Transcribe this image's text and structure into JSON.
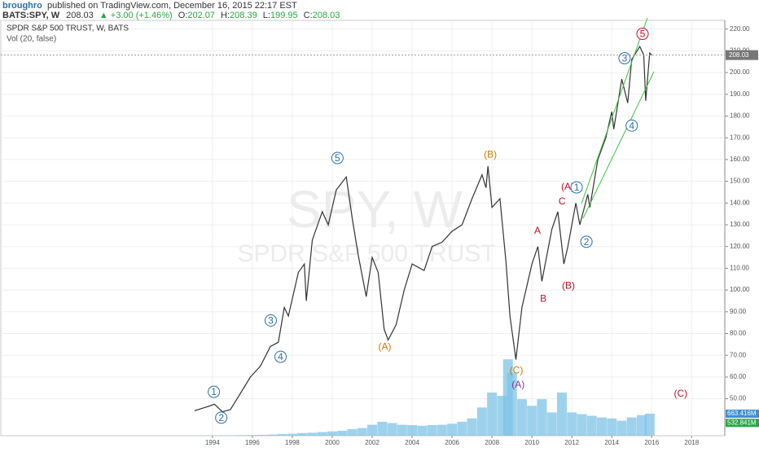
{
  "header": {
    "publisher": "broughro",
    "published": "published on TradingView.com, December 16, 2015 22:17 EST",
    "symbol": "BATS:SPY, W",
    "price": "208.03",
    "change": "▲ +3.00 (+1.46%)",
    "ohlc": [
      [
        "O:",
        "202.07"
      ],
      [
        "H:",
        "208.39"
      ],
      [
        "L:",
        "199.95"
      ],
      [
        "C:",
        "208.03"
      ]
    ]
  },
  "chart_data": {
    "type": "line",
    "legend_title": "SPDR S&P 500 TRUST, W, BATS",
    "legend_volume": "Vol (20, false)",
    "watermark": "SPY, W",
    "watermark_sub": "SPDR S&P 500 TRUST",
    "xlim": [
      1983.4,
      2019.66
    ],
    "ylim": [
      33,
      224
    ],
    "y2lim": [
      0,
      12500
    ],
    "grid": true,
    "xticks": [
      1994,
      1996,
      1998,
      2000,
      2002,
      2004,
      2006,
      2008,
      2010,
      2012,
      2014,
      2016,
      2018
    ],
    "yticks": [
      {
        "value": 50,
        "label": "50.00"
      },
      {
        "value": 60,
        "label": "60.00"
      },
      {
        "value": 70,
        "label": "70.00"
      },
      {
        "value": 80,
        "label": "80.00"
      },
      {
        "value": 90,
        "label": "90.00"
      },
      {
        "value": 100,
        "label": "100.00"
      },
      {
        "value": 110,
        "label": "110.00"
      },
      {
        "value": 120,
        "label": "120.00"
      },
      {
        "value": 130,
        "label": "130.00"
      },
      {
        "value": 140,
        "label": "140.00"
      },
      {
        "value": 150,
        "label": "150.00"
      },
      {
        "value": 160,
        "label": "160.00"
      },
      {
        "value": 170,
        "label": "170.00"
      },
      {
        "value": 180,
        "label": "180.00"
      },
      {
        "value": 190,
        "label": "190.00"
      },
      {
        "value": 200,
        "label": "200.00"
      },
      {
        "value": 210,
        "label": "210.00"
      },
      {
        "value": 220,
        "label": "220.00"
      }
    ],
    "price_tag": 208.03,
    "volume_tags": [
      {
        "value": 663.416,
        "label": "663.416M",
        "color": "#3d8fd1"
      },
      {
        "value": 532.841,
        "label": "532.841M",
        "color": "#27a844"
      }
    ],
    "price": {
      "name": "SPY",
      "color": "#333333",
      "x": [
        1993.1,
        1993.8,
        1994.1,
        1994.5,
        1994.9,
        1995.3,
        1995.9,
        1996.4,
        1996.9,
        1997.3,
        1997.6,
        1997.8,
        1998.3,
        1998.6,
        1998.7,
        1999.0,
        1999.5,
        1999.8,
        2000.2,
        2000.7,
        2001.0,
        2001.3,
        2001.7,
        2002.0,
        2002.3,
        2002.6,
        2002.8,
        2003.2,
        2003.6,
        2004.0,
        2004.6,
        2005.0,
        2005.5,
        2006.0,
        2006.5,
        2007.0,
        2007.5,
        2007.7,
        2007.8,
        2008.0,
        2008.4,
        2008.7,
        2008.9,
        2009.2,
        2009.5,
        2010.0,
        2010.3,
        2010.5,
        2011.0,
        2011.3,
        2011.6,
        2011.8,
        2012.2,
        2012.4,
        2012.8,
        2012.9,
        2013.3,
        2013.7,
        2014.0,
        2014.1,
        2014.5,
        2014.8,
        2015.0,
        2015.4,
        2015.6,
        2015.7,
        2015.9,
        2016.0
      ],
      "values": [
        44.5,
        46.5,
        47.5,
        44,
        45,
        51,
        60,
        65,
        74,
        76,
        92,
        88,
        108,
        112,
        95,
        123,
        136,
        130,
        146,
        152,
        133,
        116,
        97,
        115,
        108,
        82,
        77,
        84,
        100,
        112,
        109,
        120,
        122,
        127,
        130,
        142,
        153,
        147,
        157,
        138,
        142,
        113,
        88,
        68,
        92,
        112,
        120,
        104,
        128,
        136,
        112,
        120,
        140,
        130,
        144,
        138,
        160,
        170,
        182,
        174,
        197,
        186,
        206,
        212,
        208,
        187,
        209,
        208
      ]
    },
    "volume": {
      "name": "Vol",
      "color": "#7ec3e6",
      "axis": "y2",
      "x": [
        1993.0,
        1993.5,
        1994.0,
        1994.5,
        1995.0,
        1995.5,
        1996.0,
        1996.5,
        1997.0,
        1997.5,
        1998.0,
        1998.5,
        1999.0,
        1999.5,
        2000.0,
        2000.5,
        2001.0,
        2001.5,
        2002.0,
        2002.5,
        2003.0,
        2003.5,
        2004.0,
        2004.5,
        2005.0,
        2005.5,
        2006.0,
        2006.5,
        2007.0,
        2007.5,
        2008.0,
        2008.5,
        2008.8,
        2009.0,
        2009.5,
        2010.0,
        2010.5,
        2011.0,
        2011.5,
        2012.0,
        2012.5,
        2013.0,
        2013.5,
        2014.0,
        2014.5,
        2015.0,
        2015.5,
        2015.9
      ],
      "values": [
        5,
        5,
        8,
        10,
        10,
        15,
        20,
        25,
        35,
        50,
        60,
        80,
        90,
        110,
        130,
        150,
        200,
        230,
        330,
        420,
        380,
        330,
        320,
        300,
        320,
        330,
        360,
        420,
        520,
        850,
        1300,
        1200,
        2300,
        1900,
        1100,
        900,
        1100,
        700,
        1300,
        700,
        650,
        600,
        550,
        520,
        450,
        550,
        620,
        663.416
      ]
    },
    "annotations": [
      {
        "text": "1",
        "x": 1994.07,
        "y": 53.2,
        "color": "#2a6fa8",
        "circled": true
      },
      {
        "text": "2",
        "x": 1994.44,
        "y": 41.3,
        "color": "#2a6fa8",
        "circled": true
      },
      {
        "text": "3",
        "x": 1996.92,
        "y": 86.0,
        "color": "#2a6fa8",
        "circled": true
      },
      {
        "text": "4",
        "x": 1997.41,
        "y": 69.3,
        "color": "#2a6fa8",
        "circled": true
      },
      {
        "text": "5",
        "x": 2000.26,
        "y": 160.7,
        "color": "#2a6fa8",
        "circled": true
      },
      {
        "text": "(A)",
        "x": 2002.63,
        "y": 74.1,
        "color": "#c87a00",
        "circled": false
      },
      {
        "text": "(B)",
        "x": 2007.92,
        "y": 162.5,
        "color": "#c87a00",
        "circled": false
      },
      {
        "text": "(C)",
        "x": 2009.22,
        "y": 63.3,
        "color": "#c87a00",
        "circled": false
      },
      {
        "text": "(A)",
        "x": 2009.31,
        "y": 56.6,
        "color": "#7a3a9a",
        "circled": false
      },
      {
        "text": "A",
        "x": 2010.28,
        "y": 127.5,
        "color": "#c0102a",
        "circled": false
      },
      {
        "text": "B",
        "x": 2010.57,
        "y": 96.1,
        "color": "#c0102a",
        "circled": false
      },
      {
        "text": "C",
        "x": 2011.51,
        "y": 140.9,
        "color": "#c0102a",
        "circled": false
      },
      {
        "text": "(A)",
        "x": 2011.79,
        "y": 147.6,
        "color": "#c0102a",
        "circled": false
      },
      {
        "text": "(B)",
        "x": 2011.83,
        "y": 102.1,
        "color": "#c0102a",
        "circled": false
      },
      {
        "text": "1",
        "x": 2012.24,
        "y": 147.2,
        "color": "#2a6fa8",
        "circled": true
      },
      {
        "text": "2",
        "x": 2012.73,
        "y": 122.2,
        "color": "#2a6fa8",
        "circled": true
      },
      {
        "text": "3",
        "x": 2014.64,
        "y": 206.6,
        "color": "#2a6fa8",
        "circled": true
      },
      {
        "text": "4",
        "x": 2015.0,
        "y": 175.6,
        "color": "#2a6fa8",
        "circled": true
      },
      {
        "text": "5",
        "x": 2015.54,
        "y": 217.8,
        "color": "#c0102a",
        "circled": true
      },
      {
        "text": "(C)",
        "x": 2017.45,
        "y": 52.5,
        "color": "#c0102a",
        "circled": false
      }
    ]
  }
}
